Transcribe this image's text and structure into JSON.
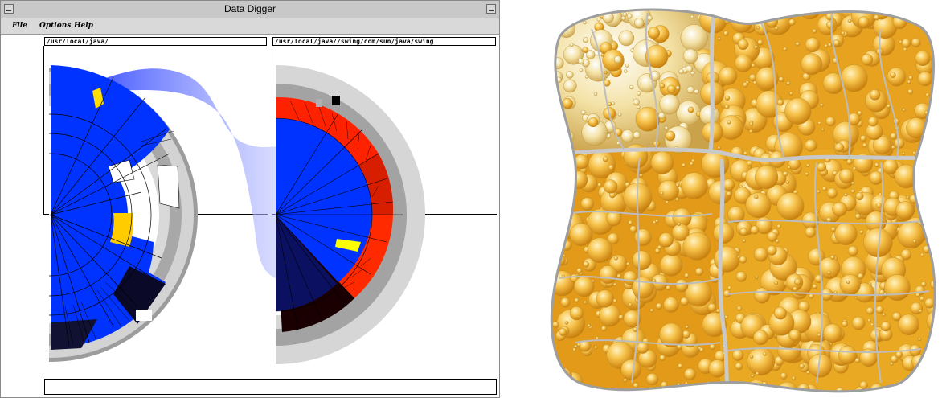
{
  "window": {
    "title": "Data Digger"
  },
  "menu": {
    "items": [
      "File",
      "Options",
      "Help"
    ]
  },
  "left_view": {
    "path": "/usr/local/java/"
  },
  "right_view": {
    "path": "/usr/local/java//swing/com/sun/java/swing"
  },
  "status": {
    "value": ""
  },
  "colors": {
    "window_chrome": "#c8c8c8",
    "menubar": "#d9d9d9",
    "sector_blue": "#0033ff",
    "highlight_yellow": "#ffcc00",
    "highlight_red": "#ff2200",
    "ring_gray_light": "#d6d6d6",
    "ring_gray_dark": "#a3a3a3",
    "link_band": "#6d7dff",
    "bubble_gold": "#f2a81a",
    "bubble_cream": "#f5dc8a"
  },
  "icons": {
    "titlebar_left": "window-menu-icon",
    "titlebar_right": "minimize-icon"
  }
}
